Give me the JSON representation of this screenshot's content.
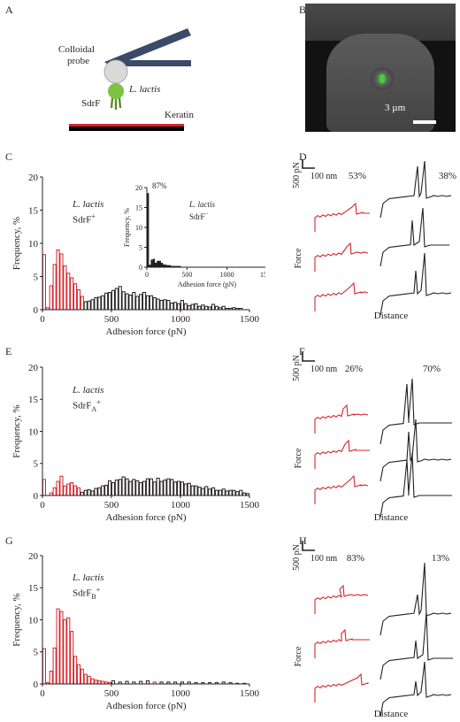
{
  "panels": {
    "A": {
      "letter": "A",
      "probe_label_1": "Colloidal",
      "probe_label_2": "probe",
      "strain_label": "L. lactis",
      "protein_label": "SdrF",
      "substrate_label": "Keratin"
    },
    "B": {
      "letter": "B",
      "scale_label": "3 µm"
    },
    "C": {
      "letter": "C",
      "strain": "L. lactis",
      "genotype": "SdrF",
      "genotype_sup": "+",
      "inset": {
        "strain": "L. lactis",
        "genotype": "SdrF",
        "genotype_sup": "−",
        "peak_label": "87%",
        "ylabel": "Frequency, %",
        "xlabel": "Adhesion force (pN)",
        "yticks": [
          "0",
          "5",
          "10",
          "15",
          "20"
        ],
        "xticks": [
          "0",
          "500",
          "1000",
          "1500"
        ]
      }
    },
    "D": {
      "letter": "D",
      "scale_force": "500 pN",
      "scale_dist": "100 nm",
      "pct_red": "53%",
      "pct_black": "38%",
      "force_label": "Force",
      "distance_label": "Distance"
    },
    "E": {
      "letter": "E",
      "strain": "L. lactis",
      "genotype": "SdrF",
      "genotype_sub": "A",
      "genotype_sup": "+"
    },
    "F": {
      "letter": "F",
      "scale_force": "500 pN",
      "scale_dist": "100 nm",
      "pct_red": "26%",
      "pct_black": "70%",
      "force_label": "Force",
      "distance_label": "Distance"
    },
    "G": {
      "letter": "G",
      "strain": "L. lactis",
      "genotype": "SdrF",
      "genotype_sub": "B",
      "genotype_sup": "+"
    },
    "H": {
      "letter": "H",
      "scale_force": "500 pN",
      "scale_dist": "100 nm",
      "pct_red": "83%",
      "pct_black": "13%",
      "force_label": "Force",
      "distance_label": "Distance"
    }
  },
  "axes": {
    "ylabel": "Frequency, %",
    "xlabel": "Adhesion force (pN)",
    "yticks": [
      "0",
      "5",
      "10",
      "15",
      "20"
    ],
    "xticks": [
      "0",
      "500",
      "1000",
      "1500"
    ]
  },
  "colors": {
    "specific": "#d7232b",
    "nonspecific": "#231f20",
    "probe": "#3b4a68",
    "bacterium": "#7dc242"
  },
  "chart_data": [
    {
      "type": "bar",
      "panel": "C",
      "bin_width": 25,
      "xlim": [
        0,
        1500
      ],
      "ylim": [
        0,
        20
      ],
      "series": [
        {
          "name": "",
          "color": "red",
          "x": [
            0,
            25,
            50,
            75,
            100,
            125,
            150,
            175,
            200,
            225,
            250,
            275
          ],
          "values": [
            8.3,
            0.3,
            3.6,
            6.8,
            9.0,
            8.4,
            6.6,
            5.5,
            4.8,
            3.9,
            3.0,
            2.0
          ]
        },
        {
          "name": "",
          "color": "black",
          "x": [
            300,
            325,
            350,
            375,
            400,
            425,
            450,
            475,
            500,
            525,
            550,
            575,
            600,
            625,
            650,
            675,
            700,
            725,
            750,
            775,
            800,
            825,
            850,
            875,
            900,
            925,
            950,
            975,
            1000,
            1025,
            1050,
            1075,
            1100,
            1125,
            1150,
            1175,
            1200,
            1225,
            1250,
            1275,
            1300,
            1325,
            1350,
            1375,
            1400,
            1425
          ],
          "values": [
            1.2,
            1.3,
            1.5,
            1.8,
            1.9,
            2.1,
            2.5,
            2.6,
            2.9,
            3.2,
            3.5,
            2.7,
            2.4,
            2.2,
            2.6,
            2.0,
            2.3,
            2.6,
            2.1,
            2.1,
            1.8,
            1.6,
            1.4,
            1.5,
            1.4,
            1.0,
            1.1,
            0.9,
            1.4,
            0.9,
            0.6,
            0.8,
            0.9,
            0.5,
            0.7,
            0.5,
            0.4,
            0.8,
            0.5,
            0.3,
            0.5,
            0.2,
            0.2,
            0.3,
            0.2,
            0.2
          ]
        }
      ]
    },
    {
      "type": "bar",
      "panel": "C-inset",
      "bin_width": 25,
      "xlim": [
        0,
        1500
      ],
      "ylim": [
        0,
        20
      ],
      "series": [
        {
          "name": "",
          "color": "black",
          "x": [
            0,
            25,
            50,
            75,
            100,
            125,
            150,
            175,
            200,
            225,
            250,
            275,
            300,
            325,
            350,
            375,
            400
          ],
          "values": [
            18.5,
            0.5,
            1.8,
            2.0,
            1.0,
            1.5,
            1.5,
            1.0,
            0.6,
            0.5,
            0.4,
            0.4,
            0.2,
            0.2,
            0.2,
            0.2,
            0.2
          ]
        }
      ]
    },
    {
      "type": "bar",
      "panel": "E",
      "bin_width": 25,
      "xlim": [
        0,
        1500
      ],
      "ylim": [
        0,
        20
      ],
      "series": [
        {
          "name": "",
          "color": "red",
          "x": [
            0,
            25,
            50,
            75,
            100,
            125,
            150,
            175,
            200,
            225,
            250
          ],
          "values": [
            2.5,
            0,
            0.4,
            1.2,
            2.2,
            3.0,
            1.5,
            1.8,
            2.0,
            1.5,
            1.2
          ]
        },
        {
          "name": "",
          "color": "black",
          "x": [
            275,
            300,
            325,
            350,
            375,
            400,
            425,
            450,
            475,
            500,
            525,
            550,
            575,
            600,
            625,
            650,
            675,
            700,
            725,
            750,
            775,
            800,
            825,
            850,
            875,
            900,
            925,
            950,
            975,
            1000,
            1025,
            1050,
            1075,
            1100,
            1125,
            1150,
            1175,
            1200,
            1225,
            1250,
            1275,
            1300,
            1325,
            1350,
            1375,
            1400,
            1425,
            1450,
            1475
          ],
          "values": [
            0.5,
            0.8,
            0.9,
            0.7,
            1.1,
            1.2,
            1.5,
            1.6,
            2.3,
            2.0,
            2.4,
            2.5,
            2.9,
            2.6,
            2.2,
            2.5,
            2.3,
            2.0,
            2.2,
            2.6,
            2.6,
            2.1,
            2.7,
            2.2,
            2.4,
            2.6,
            2.5,
            2.1,
            2.2,
            2.1,
            1.8,
            1.9,
            1.5,
            1.5,
            1.3,
            1.1,
            1.4,
            1.0,
            1.2,
            0.8,
            0.8,
            1.0,
            0.7,
            0.8,
            0.8,
            0.6,
            0.8,
            0.4,
            0.3
          ]
        }
      ]
    },
    {
      "type": "bar",
      "panel": "G",
      "bin_width": 25,
      "xlim": [
        0,
        1500
      ],
      "ylim": [
        0,
        20
      ],
      "series": [
        {
          "name": "",
          "color": "red",
          "x": [
            0,
            25,
            50,
            75,
            100,
            125,
            150,
            175,
            200,
            225,
            250,
            275,
            300,
            325,
            350,
            375,
            400,
            425,
            450,
            475,
            800
          ],
          "values": [
            5.5,
            0.2,
            2.0,
            5.6,
            11.7,
            11.3,
            10.0,
            10.3,
            8.2,
            4.3,
            3.0,
            2.3,
            1.5,
            1.2,
            0.8,
            0.6,
            0.5,
            0.4,
            0.3,
            0.2,
            0.3
          ]
        },
        {
          "name": "",
          "color": "black",
          "x": [
            500,
            550,
            600,
            650,
            700,
            750,
            850,
            900,
            950,
            1000,
            1050,
            1100,
            1150,
            1200,
            1250,
            1300,
            1350,
            1400,
            1450
          ],
          "values": [
            0.5,
            0.3,
            0.4,
            0.3,
            0.4,
            0.5,
            0.3,
            0.3,
            0.3,
            0.3,
            0.3,
            0.2,
            0.2,
            0.2,
            0.2,
            0.3,
            0.2,
            0.1,
            0.1
          ]
        }
      ]
    }
  ]
}
